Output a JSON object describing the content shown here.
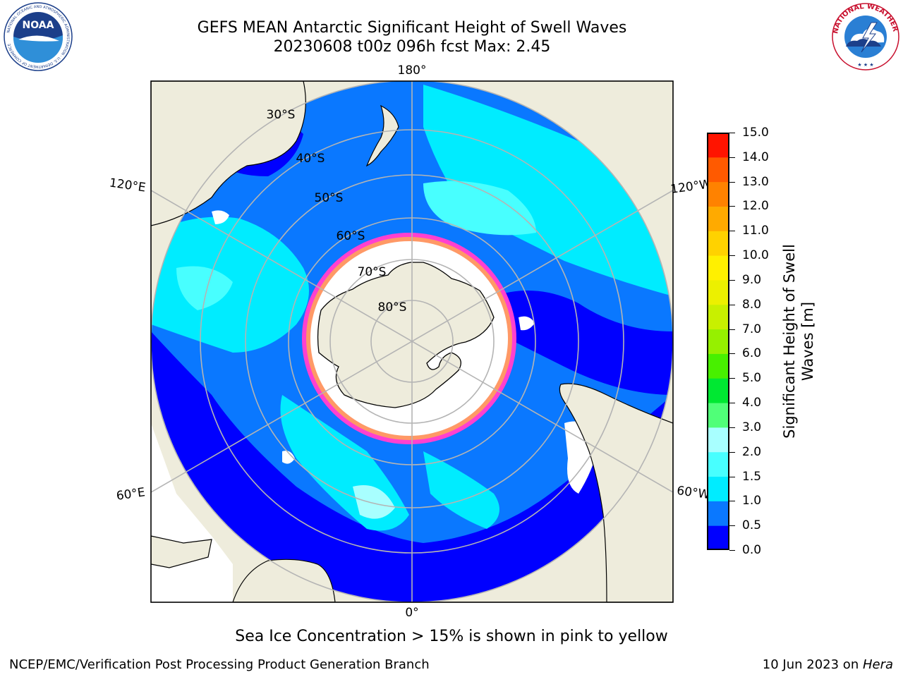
{
  "header": {
    "title_line1": "GEFS MEAN Antarctic Significant Height of Swell Waves",
    "title_line2": "20230608 t00z 096h fcst   Max: 2.45"
  },
  "logos": {
    "left": "noaa-logo",
    "left_text": "NOAA",
    "left_ring_text": "NATIONAL OCEANIC AND ATMOSPHERIC ADMINISTRATION · U.S. DEPARTMENT OF COMMERCE",
    "right": "nws-logo",
    "right_ring_text": "NATIONAL WEATHER SERVICE"
  },
  "map": {
    "projection": "south-polar-stereographic",
    "longitude_labels": {
      "top": "180°",
      "bottom": "0°",
      "upper_left": "120°E",
      "upper_right": "120°W",
      "lower_left": "60°E",
      "lower_right": "60°W"
    },
    "latitude_labels": [
      "30°S",
      "40°S",
      "50°S",
      "60°S",
      "70°S",
      "80°S"
    ],
    "colors": {
      "land": "#eeecdc",
      "sea_ice": "#ffffff",
      "ice_edge": "#ff40d0",
      "ice_edge_inner": "#ff9966",
      "gridline": "#b4b4b4"
    }
  },
  "colorbar": {
    "label": "Significant Height of Swell Waves [m]",
    "ticks": [
      "0.0",
      "0.5",
      "1.0",
      "1.5",
      "2.0",
      "3.0",
      "4.0",
      "5.0",
      "6.0",
      "7.0",
      "8.0",
      "9.0",
      "10.0",
      "11.0",
      "12.0",
      "13.0",
      "14.0",
      "15.0"
    ],
    "colors": [
      "#0000ff",
      "#0a78ff",
      "#00ecff",
      "#48ffff",
      "#a8ffff",
      "#50ff78",
      "#00e832",
      "#48f000",
      "#96f000",
      "#c8f000",
      "#ecf000",
      "#fff000",
      "#ffd200",
      "#ffaa00",
      "#ff8200",
      "#ff5a00",
      "#ff1400"
    ]
  },
  "footer": {
    "note": "Sea Ice Concentration > 15% is shown in pink to yellow",
    "credit": "NCEP/EMC/Verification Post Processing Product Generation Branch",
    "date": "10 Jun 2023 on ",
    "machine": "Hera"
  }
}
